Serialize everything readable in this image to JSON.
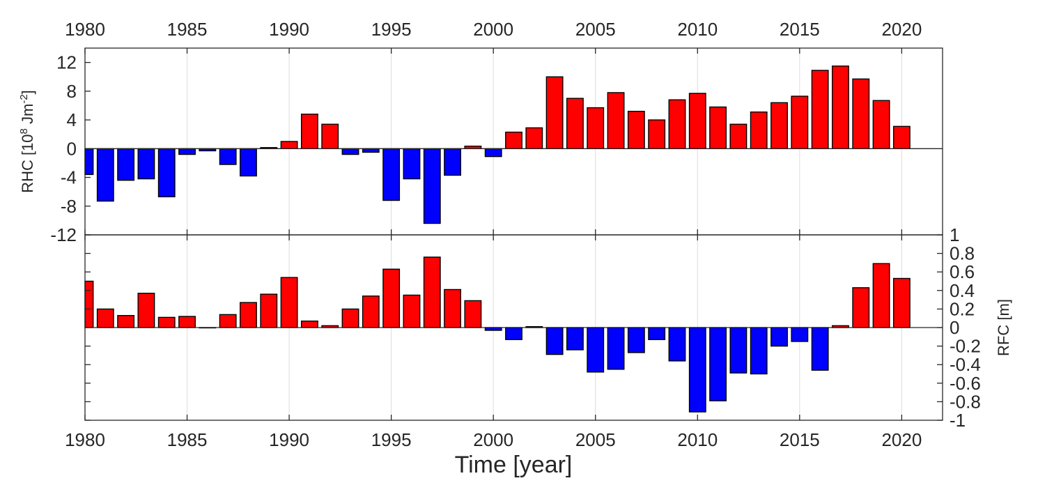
{
  "colors": {
    "positive": "#ff0000",
    "negative": "#0000ff",
    "axis": "#262626",
    "grid": "#dcdcdc"
  },
  "chart_data": [
    {
      "type": "bar",
      "panel": "top",
      "ylabel": "RHC [10",
      "ylabel_exp1": "8",
      "ylabel_mid": " Jm",
      "ylabel_exp2": "-2",
      "ylabel_end": "]",
      "x": [
        1980,
        1981,
        1982,
        1983,
        1984,
        1985,
        1986,
        1987,
        1988,
        1989,
        1990,
        1991,
        1992,
        1993,
        1994,
        1995,
        1996,
        1997,
        1998,
        1999,
        2000,
        2001,
        2002,
        2003,
        2004,
        2005,
        2006,
        2007,
        2008,
        2009,
        2010,
        2011,
        2012,
        2013,
        2014,
        2015,
        2016,
        2017,
        2018,
        2019,
        2020
      ],
      "values": [
        -3.6,
        -7.3,
        -4.4,
        -4.2,
        -6.7,
        -0.8,
        -0.3,
        -2.2,
        -3.8,
        0.15,
        1.0,
        4.8,
        3.4,
        -0.8,
        -0.5,
        -7.2,
        -4.2,
        -10.4,
        -3.7,
        0.35,
        -1.1,
        2.3,
        2.9,
        10.0,
        7.0,
        5.7,
        7.8,
        5.2,
        4.0,
        6.8,
        7.7,
        5.8,
        3.4,
        5.1,
        6.4,
        7.3,
        10.9,
        11.5,
        9.7,
        6.7,
        3.1
      ],
      "xlim": [
        1980,
        2022
      ],
      "ylim": [
        -12,
        14
      ],
      "yticks": [
        "12",
        "8",
        "4",
        "0",
        "-4",
        "-8",
        "-12"
      ],
      "ytick_values": [
        12,
        8,
        4,
        0,
        -4,
        -8,
        -12
      ],
      "xticks": [
        "1980",
        "1985",
        "1990",
        "1995",
        "2000",
        "2005",
        "2010",
        "2015",
        "2020"
      ],
      "xtick_values": [
        1980,
        1985,
        1990,
        1995,
        2000,
        2005,
        2010,
        2015,
        2020
      ],
      "grid": "vertical"
    },
    {
      "type": "bar",
      "panel": "bottom",
      "ylabel": "RFC [m]",
      "xlabel": "Time [year]",
      "x": [
        1980,
        1981,
        1982,
        1983,
        1984,
        1985,
        1986,
        1987,
        1988,
        1989,
        1990,
        1991,
        1992,
        1993,
        1994,
        1995,
        1996,
        1997,
        1998,
        1999,
        2000,
        2001,
        2002,
        2003,
        2004,
        2005,
        2006,
        2007,
        2008,
        2009,
        2010,
        2011,
        2012,
        2013,
        2014,
        2015,
        2016,
        2017,
        2018,
        2019,
        2020
      ],
      "values": [
        0.5,
        0.2,
        0.13,
        0.37,
        0.11,
        0.12,
        0.0,
        0.14,
        0.27,
        0.36,
        0.54,
        0.07,
        0.02,
        0.2,
        0.34,
        0.63,
        0.35,
        0.76,
        0.41,
        0.29,
        -0.03,
        -0.13,
        0.01,
        -0.29,
        -0.24,
        -0.48,
        -0.45,
        -0.27,
        -0.13,
        -0.36,
        -0.91,
        -0.79,
        -0.49,
        -0.5,
        -0.2,
        -0.15,
        -0.46,
        0.02,
        0.43,
        0.69,
        0.53
      ],
      "xlim": [
        1980,
        2022
      ],
      "ylim": [
        -1,
        1
      ],
      "yticks": [
        "1",
        "0.8",
        "0.6",
        "0.4",
        "0.2",
        "0",
        "-0.2",
        "-0.4",
        "-0.6",
        "-0.8",
        "-1"
      ],
      "ytick_values": [
        1,
        0.8,
        0.6,
        0.4,
        0.2,
        0,
        -0.2,
        -0.4,
        -0.6,
        -0.8,
        -1
      ],
      "xticks": [
        "1980",
        "1985",
        "1990",
        "1995",
        "2000",
        "2005",
        "2010",
        "2015",
        "2020"
      ],
      "xtick_values": [
        1980,
        1985,
        1990,
        1995,
        2000,
        2005,
        2010,
        2015,
        2020
      ],
      "grid": "vertical"
    }
  ]
}
